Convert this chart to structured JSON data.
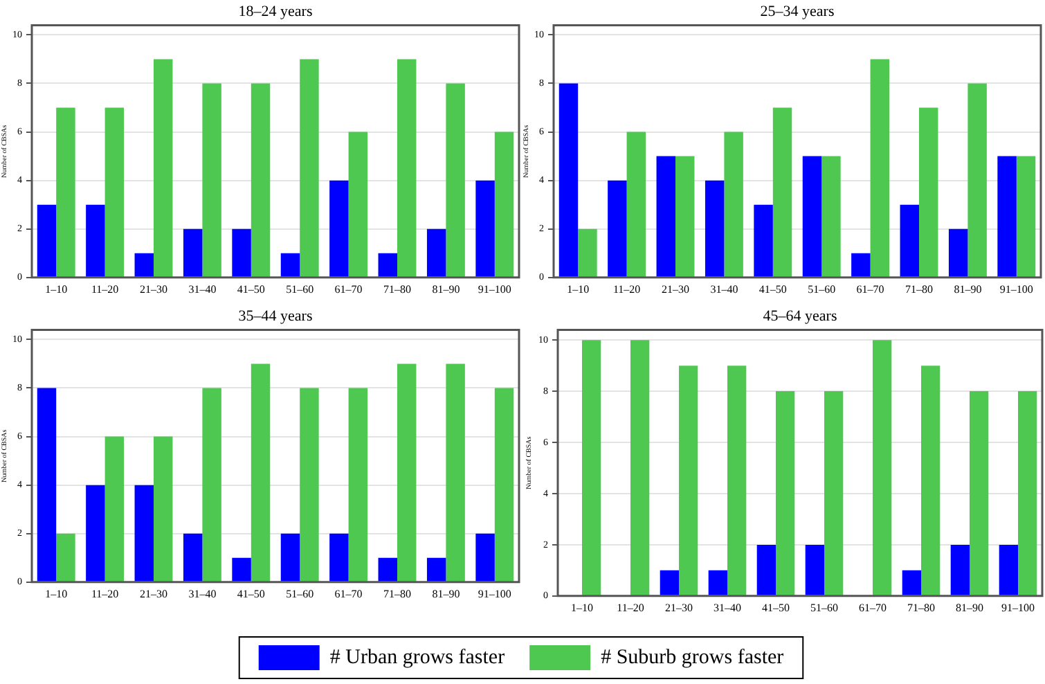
{
  "chart_data": [
    {
      "type": "bar",
      "title": "18–24 years",
      "ylabel": "Number of CBSAs",
      "categories": [
        "1–10",
        "11–20",
        "21–30",
        "31–40",
        "41–50",
        "51–60",
        "61–70",
        "71–80",
        "81–90",
        "91–100"
      ],
      "series": [
        {
          "color": "#0000ff",
          "values": [
            3,
            3,
            1,
            2,
            2,
            1,
            4,
            1,
            2,
            4
          ]
        },
        {
          "color": "#4ec850",
          "values": [
            7,
            7,
            9,
            8,
            8,
            9,
            6,
            9,
            8,
            6
          ]
        }
      ],
      "ylim": [
        0,
        10.4
      ],
      "yticks": [
        0,
        2,
        4,
        6,
        8,
        10
      ],
      "grid": "y"
    },
    {
      "type": "bar",
      "title": "25–34 years",
      "ylabel": "Number of CBSAs",
      "categories": [
        "1–10",
        "11–20",
        "21–30",
        "31–40",
        "41–50",
        "51–60",
        "61–70",
        "71–80",
        "81–90",
        "91–100"
      ],
      "series": [
        {
          "color": "#0000ff",
          "values": [
            8,
            4,
            5,
            4,
            3,
            5,
            1,
            3,
            2,
            5
          ]
        },
        {
          "color": "#4ec850",
          "values": [
            2,
            6,
            5,
            6,
            7,
            5,
            9,
            7,
            8,
            5
          ]
        }
      ],
      "ylim": [
        0,
        10.4
      ],
      "yticks": [
        0,
        2,
        4,
        6,
        8,
        10
      ],
      "grid": "y"
    },
    {
      "type": "bar",
      "title": "35–44 years",
      "ylabel": "Number of CBSAs",
      "categories": [
        "1–10",
        "11–20",
        "21–30",
        "31–40",
        "41–50",
        "51–60",
        "61–70",
        "71–80",
        "81–90",
        "91–100"
      ],
      "series": [
        {
          "color": "#0000ff",
          "values": [
            8,
            4,
            4,
            2,
            1,
            2,
            2,
            1,
            1,
            2
          ]
        },
        {
          "color": "#4ec850",
          "values": [
            2,
            6,
            6,
            8,
            9,
            8,
            8,
            9,
            9,
            8
          ]
        }
      ],
      "ylim": [
        0,
        10.4
      ],
      "yticks": [
        0,
        2,
        4,
        6,
        8,
        10
      ],
      "grid": "y"
    },
    {
      "type": "bar",
      "title": "45–64 years",
      "ylabel": "Number of CBSAs",
      "categories": [
        "1–10",
        "11–20",
        "21–30",
        "31–40",
        "41–50",
        "51–60",
        "61–70",
        "71–80",
        "81–90",
        "91–100"
      ],
      "series": [
        {
          "name": "# Urban grows faster",
          "color": "#0000ff",
          "values": [
            0,
            0,
            1,
            1,
            2,
            2,
            0,
            1,
            2,
            2
          ]
        },
        {
          "name": "# Suburb grows faster",
          "color": "#4ec850",
          "values": [
            10,
            10,
            9,
            9,
            8,
            8,
            10,
            9,
            8,
            8
          ]
        }
      ],
      "ylim": [
        0,
        10.4
      ],
      "yticks": [
        0,
        2,
        4,
        6,
        8,
        10
      ],
      "grid": "y",
      "legend": "bottom"
    }
  ]
}
